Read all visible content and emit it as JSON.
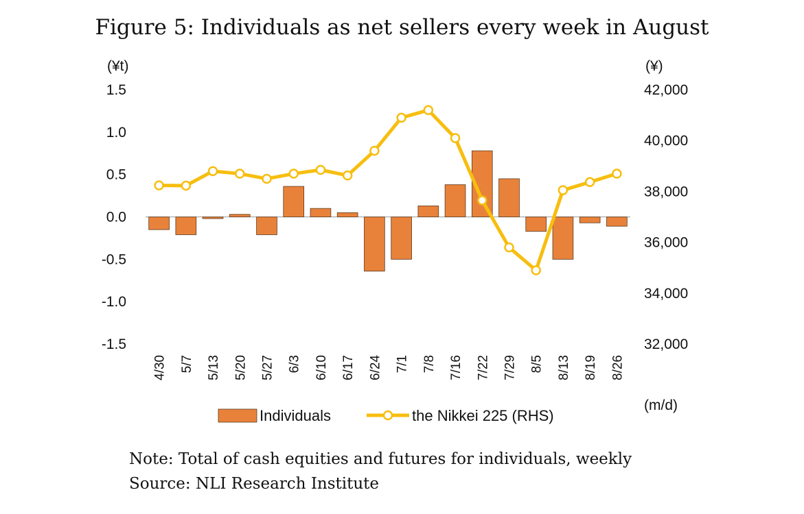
{
  "chart_data": {
    "type": "bar+line",
    "title": "Figure 5: Individuals as net sellers every week in August",
    "categories": [
      "4/30",
      "5/7",
      "5/13",
      "5/20",
      "5/27",
      "6/3",
      "6/10",
      "6/17",
      "6/24",
      "7/1",
      "7/8",
      "7/16",
      "7/22",
      "7/29",
      "8/5",
      "8/13",
      "8/19",
      "8/26"
    ],
    "series": [
      {
        "name": "Individuals",
        "type": "bar",
        "axis": "left",
        "color": "#E8823A",
        "values": [
          -0.15,
          -0.21,
          -0.02,
          0.03,
          -0.21,
          0.36,
          0.1,
          0.05,
          -0.64,
          -0.5,
          0.13,
          0.38,
          0.78,
          0.45,
          -0.17,
          -0.5,
          -0.07,
          -0.11
        ]
      },
      {
        "name": "the Nikkei 225 (RHS)",
        "type": "line",
        "axis": "right",
        "color": "#F7BE0F",
        "values": [
          38240,
          38230,
          38800,
          38700,
          38500,
          38700,
          38850,
          38630,
          39600,
          40900,
          41200,
          40100,
          37650,
          35800,
          34900,
          38050,
          38370,
          38700
        ]
      }
    ],
    "y_left": {
      "label": "(¥t)",
      "ticks": [
        "1.5",
        "1.0",
        "0.5",
        "0.0",
        "-0.5",
        "-1.0",
        "-1.5"
      ],
      "ylim": [
        -1.5,
        1.5
      ]
    },
    "y_right": {
      "label": "(¥)",
      "ticks": [
        "42,000",
        "40,000",
        "38,000",
        "36,000",
        "34,000",
        "32,000"
      ],
      "ylim": [
        32000,
        42000
      ]
    },
    "xlabel": "(m/d)",
    "legend": [
      "Individuals",
      "the Nikkei 225 (RHS)"
    ],
    "legend_position": "bottom"
  },
  "notes": {
    "note": "Note: Total of cash equities and futures for individuals, weekly",
    "source": "Source: NLI Research Institute"
  }
}
